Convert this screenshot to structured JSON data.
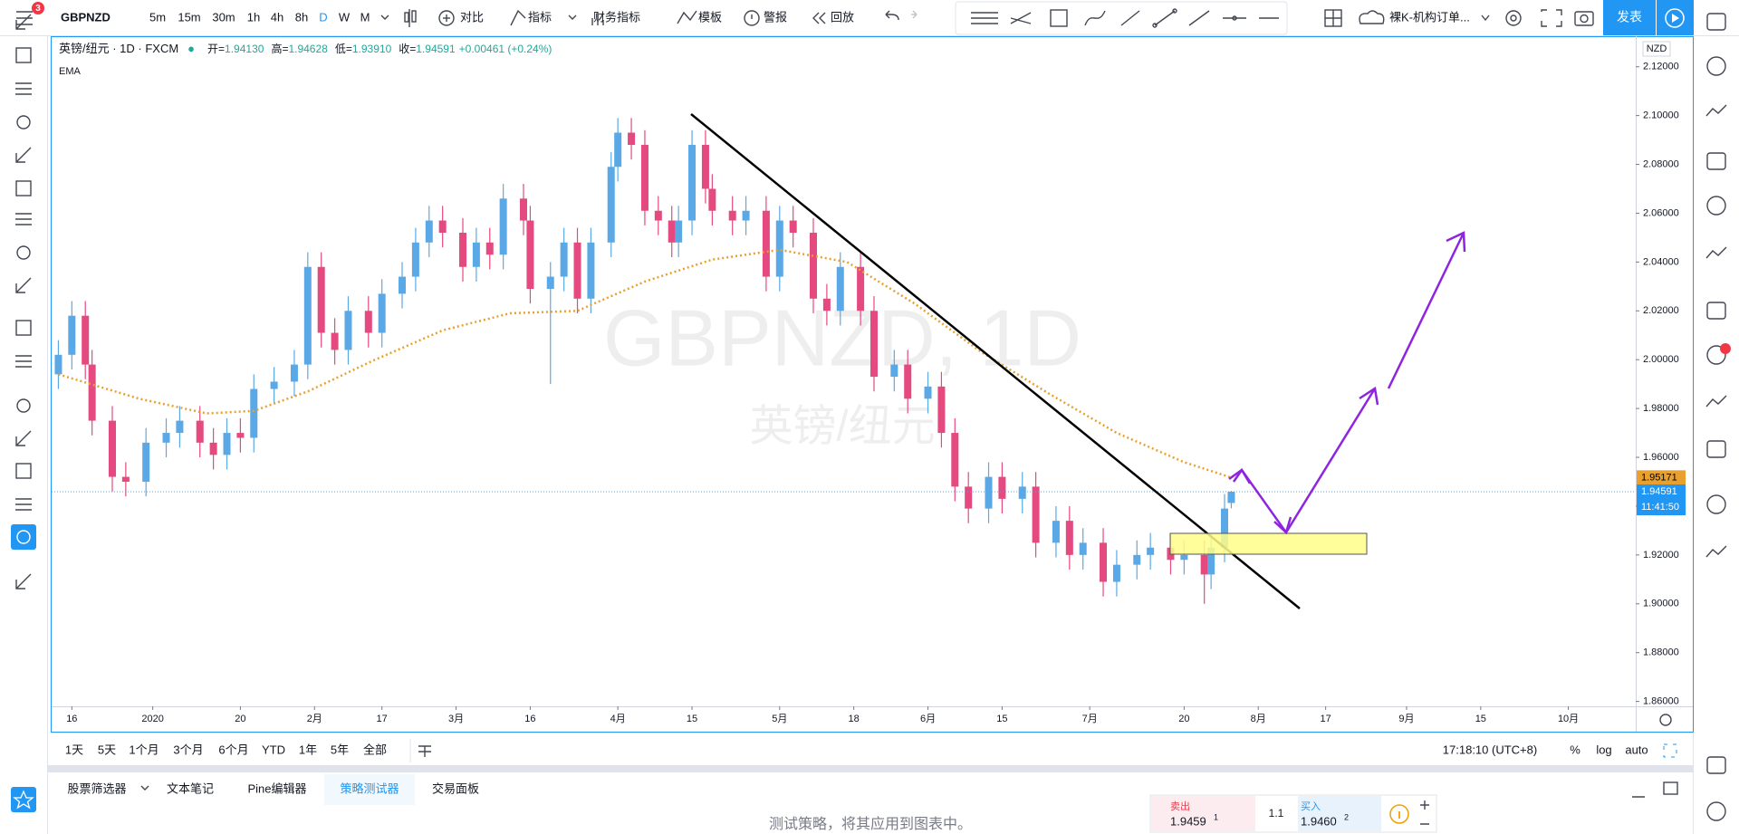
{
  "toolbar": {
    "badge": "3",
    "symbol": "GBPNZD",
    "intervals": [
      "5m",
      "15m",
      "30m",
      "1h",
      "4h",
      "8h",
      "D",
      "W",
      "M"
    ],
    "active_interval": 6,
    "buttons": [
      "对比",
      "指标",
      "财务指标",
      "模板",
      "警报",
      "回放"
    ],
    "layout_name": "裸K-机构订单...",
    "publish": "发表"
  },
  "legend": {
    "title": "英镑/纽元 · 1D · FXCM",
    "ohlc": [
      {
        "label": "开=",
        "value": "1.94130"
      },
      {
        "label": "高=",
        "value": "1.94628"
      },
      {
        "label": "低=",
        "value": "1.93910"
      },
      {
        "label": "收=",
        "value": "1.94591"
      }
    ],
    "change": "+0.00461 (+0.24%)",
    "indicator": "EMA"
  },
  "watermark": {
    "symbol": "GBPNZD, 1D",
    "name": "英镑/纽元"
  },
  "chart_data": {
    "type": "candlestick",
    "currency": "NZD",
    "up_color": "#5aa9e6",
    "down_color": "#e4497f",
    "xlim": [
      -3,
      232
    ],
    "xticks": [
      {
        "value": 0,
        "label": "16"
      },
      {
        "value": 12,
        "label": "2020"
      },
      {
        "value": 25,
        "label": "20"
      },
      {
        "value": 36,
        "label": "2月"
      },
      {
        "value": 46,
        "label": "17"
      },
      {
        "value": 57,
        "label": "3月"
      },
      {
        "value": 68,
        "label": "16"
      },
      {
        "value": 81,
        "label": "4月"
      },
      {
        "value": 92,
        "label": "15"
      },
      {
        "value": 105,
        "label": "5月"
      },
      {
        "value": 116,
        "label": "18"
      },
      {
        "value": 127,
        "label": "6月"
      },
      {
        "value": 138,
        "label": "15"
      },
      {
        "value": 151,
        "label": "7月"
      },
      {
        "value": 165,
        "label": "20"
      },
      {
        "value": 176,
        "label": "8月"
      },
      {
        "value": 186,
        "label": "17"
      },
      {
        "value": 198,
        "label": "9月"
      },
      {
        "value": 209,
        "label": "15"
      },
      {
        "value": 222,
        "label": "10月"
      }
    ],
    "ylim": [
      1.858,
      2.1325
    ],
    "yticks": [
      {
        "value": 1.86,
        "label": "1.86000"
      },
      {
        "value": 1.88,
        "label": "1.88000"
      },
      {
        "value": 1.9,
        "label": "1.90000"
      },
      {
        "value": 1.92,
        "label": "1.92000"
      },
      {
        "value": 1.94,
        "label": "1.94000"
      },
      {
        "value": 1.96,
        "label": "1.96000"
      },
      {
        "value": 1.98,
        "label": "1.98000"
      },
      {
        "value": 2.0,
        "label": "2.00000"
      },
      {
        "value": 2.02,
        "label": "2.02000"
      },
      {
        "value": 2.04,
        "label": "2.04000"
      },
      {
        "value": 2.06,
        "label": "2.06000"
      },
      {
        "value": 2.08,
        "label": "2.08000"
      },
      {
        "value": 2.1,
        "label": "2.10000"
      },
      {
        "value": 2.12,
        "label": "2.12000"
      }
    ],
    "x": [
      -2,
      0,
      2,
      3,
      6,
      8,
      11,
      14,
      16,
      19,
      21,
      23,
      25,
      27,
      30,
      33,
      35,
      37,
      39,
      41,
      44,
      46,
      49,
      51,
      53,
      55,
      58,
      60,
      62,
      64,
      67,
      68,
      71,
      73,
      75,
      77,
      80,
      81,
      83,
      85,
      87,
      89,
      90,
      92,
      94,
      95,
      98,
      100,
      103,
      105,
      107,
      110,
      112,
      114,
      117,
      119,
      122,
      124,
      127,
      129,
      131,
      133,
      136,
      138,
      141,
      143,
      146,
      148,
      150,
      153,
      155,
      158,
      160,
      163,
      165,
      168,
      169,
      171,
      172
    ],
    "candles": [
      [
        1.994,
        2.008,
        1.988,
        2.002
      ],
      [
        2.002,
        2.024,
        1.996,
        2.018
      ],
      [
        2.018,
        2.024,
        1.992,
        1.998
      ],
      [
        1.998,
        2.004,
        1.969,
        1.975
      ],
      [
        1.975,
        1.981,
        1.946,
        1.952
      ],
      [
        1.952,
        1.958,
        1.944,
        1.95
      ],
      [
        1.95,
        1.972,
        1.944,
        1.966
      ],
      [
        1.966,
        1.976,
        1.96,
        1.97
      ],
      [
        1.97,
        1.981,
        1.964,
        1.975
      ],
      [
        1.975,
        1.981,
        1.96,
        1.966
      ],
      [
        1.966,
        1.972,
        1.955,
        1.961
      ],
      [
        1.961,
        1.976,
        1.955,
        1.97
      ],
      [
        1.97,
        1.976,
        1.962,
        1.968
      ],
      [
        1.968,
        1.994,
        1.962,
        1.988
      ],
      [
        1.988,
        1.997,
        1.982,
        1.991
      ],
      [
        1.991,
        2.004,
        1.985,
        1.998
      ],
      [
        1.998,
        2.044,
        1.992,
        2.038
      ],
      [
        2.038,
        2.044,
        2.005,
        2.011
      ],
      [
        2.011,
        2.017,
        1.998,
        2.004
      ],
      [
        2.004,
        2.026,
        1.998,
        2.02
      ],
      [
        2.02,
        2.026,
        2.005,
        2.011
      ],
      [
        2.011,
        2.033,
        2.005,
        2.027
      ],
      [
        2.027,
        2.04,
        2.021,
        2.034
      ],
      [
        2.034,
        2.054,
        2.028,
        2.048
      ],
      [
        2.048,
        2.063,
        2.042,
        2.057
      ],
      [
        2.057,
        2.063,
        2.046,
        2.052
      ],
      [
        2.052,
        2.058,
        2.032,
        2.038
      ],
      [
        2.038,
        2.054,
        2.032,
        2.048
      ],
      [
        2.048,
        2.054,
        2.037,
        2.043
      ],
      [
        2.043,
        2.072,
        2.037,
        2.066
      ],
      [
        2.066,
        2.072,
        2.051,
        2.057
      ],
      [
        2.057,
        2.063,
        2.023,
        2.029
      ],
      [
        2.029,
        2.04,
        1.99,
        2.034
      ],
      [
        2.034,
        2.054,
        2.028,
        2.048
      ],
      [
        2.048,
        2.054,
        2.019,
        2.025
      ],
      [
        2.025,
        2.054,
        2.019,
        2.048
      ],
      [
        2.048,
        2.085,
        2.042,
        2.079
      ],
      [
        2.079,
        2.099,
        2.073,
        2.093
      ],
      [
        2.093,
        2.099,
        2.082,
        2.088
      ],
      [
        2.088,
        2.094,
        2.055,
        2.061
      ],
      [
        2.061,
        2.067,
        2.051,
        2.057
      ],
      [
        2.057,
        2.063,
        2.042,
        2.048
      ],
      [
        2.048,
        2.063,
        2.042,
        2.057
      ],
      [
        2.057,
        2.094,
        2.051,
        2.088
      ],
      [
        2.088,
        2.094,
        2.064,
        2.07
      ],
      [
        2.07,
        2.076,
        2.055,
        2.061
      ],
      [
        2.061,
        2.067,
        2.051,
        2.057
      ],
      [
        2.057,
        2.067,
        2.051,
        2.061
      ],
      [
        2.061,
        2.067,
        2.028,
        2.034
      ],
      [
        2.034,
        2.063,
        2.028,
        2.057
      ],
      [
        2.057,
        2.063,
        2.046,
        2.052
      ],
      [
        2.052,
        2.058,
        2.019,
        2.025
      ],
      [
        2.025,
        2.031,
        2.014,
        2.02
      ],
      [
        2.02,
        2.044,
        2.014,
        2.038
      ],
      [
        2.038,
        2.044,
        2.014,
        2.02
      ],
      [
        2.02,
        2.026,
        1.987,
        1.993
      ],
      [
        1.993,
        2.004,
        1.987,
        1.998
      ],
      [
        1.998,
        2.004,
        1.978,
        1.984
      ],
      [
        1.984,
        1.995,
        1.978,
        1.989
      ],
      [
        1.989,
        1.995,
        1.964,
        1.97
      ],
      [
        1.97,
        1.976,
        1.942,
        1.948
      ],
      [
        1.948,
        1.954,
        1.933,
        1.939
      ],
      [
        1.939,
        1.958,
        1.933,
        1.952
      ],
      [
        1.952,
        1.958,
        1.937,
        1.943
      ],
      [
        1.943,
        1.954,
        1.937,
        1.948
      ],
      [
        1.948,
        1.954,
        1.919,
        1.925
      ],
      [
        1.925,
        1.94,
        1.919,
        1.934
      ],
      [
        1.934,
        1.94,
        1.914,
        1.92
      ],
      [
        1.92,
        1.931,
        1.914,
        1.925
      ],
      [
        1.925,
        1.931,
        1.903,
        1.909
      ],
      [
        1.909,
        1.922,
        1.903,
        1.916
      ],
      [
        1.916,
        1.926,
        1.91,
        1.92
      ],
      [
        1.92,
        1.929,
        1.914,
        1.923
      ],
      [
        1.923,
        1.929,
        1.912,
        1.918
      ],
      [
        1.918,
        1.926,
        1.912,
        1.92
      ],
      [
        1.92,
        1.926,
        1.9,
        1.912
      ],
      [
        1.912,
        1.929,
        1.906,
        1.923
      ],
      [
        1.923,
        1.945,
        1.917,
        1.939
      ],
      [
        1.9413,
        1.94628,
        1.9391,
        1.94591
      ]
    ],
    "series": [
      {
        "name": "EMA",
        "color": "#e8a02e",
        "x": [
          -2,
          10,
          20,
          27,
          35,
          45,
          55,
          65,
          75,
          85,
          95,
          105,
          115,
          125,
          135,
          145,
          155,
          165,
          172
        ],
        "values": [
          1.994,
          1.984,
          1.978,
          1.979,
          1.987,
          2.0,
          2.012,
          2.019,
          2.02,
          2.032,
          2.041,
          2.045,
          2.04,
          2.023,
          2.003,
          1.986,
          1.97,
          1.958,
          1.95171
        ],
        "last_label": {
          "value": 1.95171,
          "label": "1.95171"
        }
      }
    ],
    "last_price": {
      "value": 1.94591,
      "label": "1.94591"
    },
    "countdown": "11:41:50"
  },
  "range_bar": {
    "ranges": [
      "1天",
      "5天",
      "1个月",
      "3个月",
      "6个月",
      "YTD",
      "1年",
      "5年",
      "全部"
    ],
    "clock": "17:18:10 (UTC+8)",
    "options": [
      "%",
      "log",
      "auto"
    ]
  },
  "bottom_panel": {
    "tabs": [
      "股票筛选器",
      "文本笔记",
      "Pine编辑器",
      "策略测试器",
      "交易面板"
    ],
    "active_tab": 3,
    "message": "测试策略，将其应用到图表中。",
    "trade": {
      "sell_label": "卖出",
      "sell_price": "1.9459",
      "sell_sup": "1",
      "spread": "1.1",
      "buy_label": "买入",
      "buy_price": "1.9460",
      "buy_sup": "2"
    }
  }
}
